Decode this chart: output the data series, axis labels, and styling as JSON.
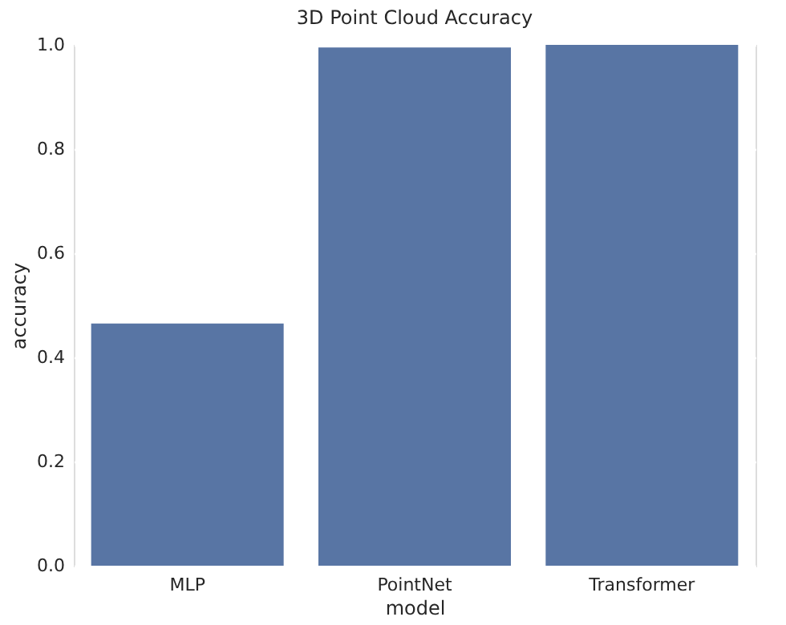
{
  "chart_data": {
    "type": "bar",
    "title": "3D Point Cloud Accuracy",
    "xlabel": "model",
    "ylabel": "accuracy",
    "categories": [
      "MLP",
      "PointNet",
      "Transformer"
    ],
    "values": [
      0.465,
      0.995,
      1.0
    ],
    "color": "#5875a4",
    "ylim": [
      0,
      1
    ],
    "yticks": [
      {
        "value": 0,
        "label": "0.0"
      },
      0.2,
      0.4,
      0.6,
      0.8,
      {
        "value": 1,
        "label": "1.0"
      }
    ],
    "grid": "y"
  }
}
